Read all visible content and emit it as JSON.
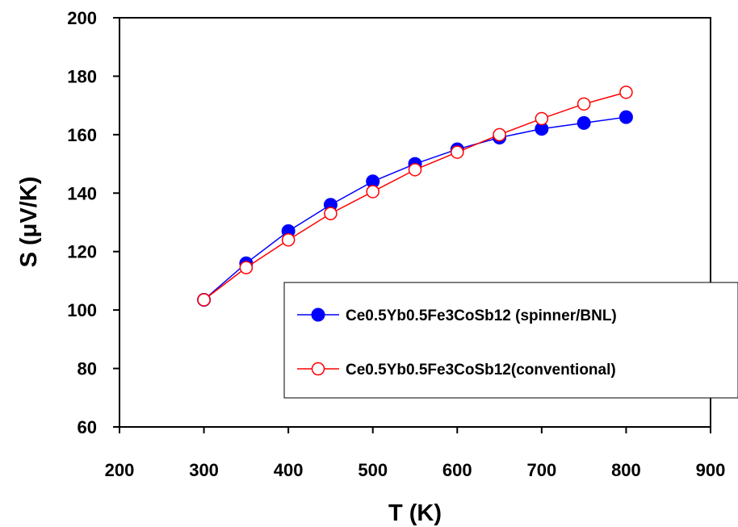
{
  "chart_data": {
    "type": "line",
    "title": "",
    "xlabel": "T (K)",
    "ylabel": "S (μV/K)",
    "xlim": [
      200,
      900
    ],
    "ylim": [
      60,
      200
    ],
    "x_ticks": [
      200,
      300,
      400,
      500,
      600,
      700,
      800,
      900
    ],
    "y_ticks": [
      60,
      80,
      100,
      120,
      140,
      160,
      180,
      200
    ],
    "grid": false,
    "legend_position": "bottom-right",
    "series": [
      {
        "name": "Ce0.5Yb0.5Fe3CoSb12 (spinner/BNL)",
        "color": "#0000ff",
        "marker": "filled-circle",
        "x": [
          300,
          350,
          400,
          450,
          500,
          550,
          600,
          650,
          700,
          750,
          800
        ],
        "y": [
          103.5,
          116,
          127,
          136,
          144,
          150,
          155,
          159,
          162,
          164,
          166
        ]
      },
      {
        "name": "Ce0.5Yb0.5Fe3CoSb12(conventional)",
        "color": "#ff0000",
        "marker": "open-circle",
        "x": [
          300,
          350,
          400,
          450,
          500,
          550,
          600,
          650,
          700,
          750,
          800
        ],
        "y": [
          103.5,
          114.5,
          124,
          133,
          140.5,
          148,
          154,
          160,
          165.5,
          170.5,
          174.5
        ]
      }
    ]
  }
}
